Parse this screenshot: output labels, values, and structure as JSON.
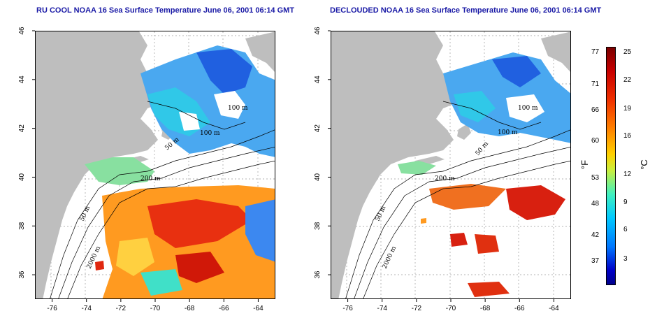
{
  "titles": {
    "left": "RU COOL NOAA 16 Sea Surface Temperature June 06, 2001 06:14 GMT",
    "right": "DECLOUDED NOAA 16 Sea Surface Temperature June 06, 2001 06:14 GMT"
  },
  "axes": {
    "x_ticks": [
      "-76",
      "-74",
      "-72",
      "-70",
      "-68",
      "-66",
      "-64"
    ],
    "y_ticks": [
      "36",
      "38",
      "40",
      "42",
      "44",
      "46"
    ],
    "x_range": [
      -77,
      -63
    ],
    "y_range": [
      35,
      46
    ]
  },
  "contours": {
    "left": [
      "100 m",
      "100 m",
      "50 m",
      "200 m",
      "50 m",
      "2000 m"
    ],
    "right": [
      "100 m",
      "100 m",
      "50 m",
      "200 m",
      "50 m",
      "2000 m"
    ]
  },
  "colorbar": {
    "fahrenheit_label": "°F",
    "celsius_label": "°C",
    "fahrenheit_ticks": [
      "77",
      "71",
      "66",
      "60",
      "53",
      "48",
      "42",
      "37"
    ],
    "celsius_ticks": [
      "25",
      "22",
      "19",
      "16",
      "12",
      "9",
      "6",
      "3"
    ],
    "colors": {
      "hot": "#c80000",
      "warm": "#ff8000",
      "mild": "#ffd000",
      "cool": "#40f0c0",
      "cold": "#0078ff",
      "coldest": "#00008a"
    }
  },
  "map_colors": {
    "land": "#bebebe",
    "sea_cloud": "#ffffff",
    "grid": "#9a9a9a"
  }
}
